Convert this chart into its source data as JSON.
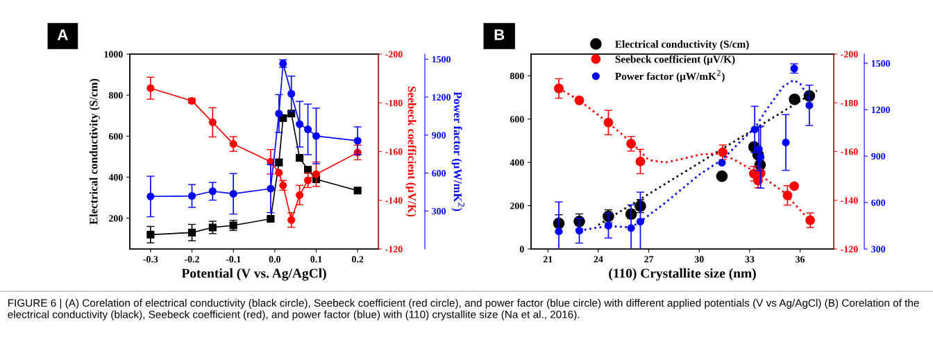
{
  "chart_data": [
    {
      "type": "line",
      "title": "A",
      "xlabel": "Potential (V vs. Ag/AgCl)",
      "ylabel": "Electrical conductivity (S/cm)",
      "y2label": "Seebeck coefficient (μV/K)",
      "y3label": "Power factor (μW/mK$^{2}$)",
      "x": [
        -0.3,
        -0.2,
        -0.15,
        -0.1,
        -0.01,
        0.01,
        0.02,
        0.04,
        0.06,
        0.08,
        0.1,
        0.2
      ],
      "xlim": [
        -0.35,
        0.25
      ],
      "xticks": [
        -0.3,
        -0.2,
        -0.1,
        {
          "value": 0,
          "label": "0.0"
        },
        0.1,
        0.2
      ],
      "ylim": [
        50,
        1000
      ],
      "yticks": [
        200,
        400,
        600,
        800,
        1000
      ],
      "y2lim": [
        -120,
        -200
      ],
      "y2ticks": [
        -200,
        -180,
        -160,
        -140,
        -120
      ],
      "y3lim": [
        0,
        1540
      ],
      "y3ticks": [
        300,
        600,
        900,
        1200,
        1500
      ],
      "grid": false,
      "legend": false,
      "series": [
        {
          "color": "#000000",
          "marker": "square",
          "values": [
            120,
            130,
            155,
            165,
            197,
            472,
            688,
            710,
            494,
            436,
            390,
            335
          ],
          "errors": [
            40,
            40,
            30,
            25,
            10,
            15,
            null,
            null,
            null,
            null,
            null,
            null
          ]
        },
        {
          "color": "#ff0000",
          "axis": "y2",
          "marker": "circle",
          "values": [
            -186,
            -180.8,
            -172,
            -163.1,
            -155.8,
            -151.3,
            -146.1,
            -131.9,
            -142.1,
            -148.2,
            -150.7,
            -159.6
          ],
          "errors": [
            4.5,
            1,
            6,
            3,
            5,
            null,
            2,
            3,
            4,
            3,
            5,
            3
          ]
        },
        {
          "color": "#0000ff",
          "axis": "y3",
          "marker": "circle",
          "values": [
            415,
            419,
            456,
            436,
            477,
            1070,
            1465,
            1226,
            986,
            945,
            893,
            855
          ],
          "errors": [
            160,
            90,
            70,
            160,
            190,
            150,
            30,
            140,
            180,
            200,
            220,
            110
          ]
        }
      ],
      "annotations": [
        "FIGURE 6 | (A) Corelation of electrical conductivity (black circle), Seebeck coefficient (red circle), and power factor (blue circle) with different applied potentials (V vs Ag/AgCl) (B) Corelation of the electrical conductivity (black), Seebeck coefficient (red), and power factor (blue) with (110) crystallite size (Na et al., 2016)."
      ]
    },
    {
      "type": "scatter",
      "title": "B",
      "xlabel": "(110) Crystallite size (nm)",
      "xlim": [
        20,
        38
      ],
      "xticks": [
        21,
        24,
        27,
        30,
        33,
        36
      ],
      "ylim": [
        0,
        900
      ],
      "yticks": [
        0,
        200,
        400,
        600,
        800
      ],
      "y2lim": [
        -120,
        -200
      ],
      "y2ticks": [
        -200,
        -180,
        -160,
        -140,
        -120
      ],
      "y3lim": [
        300,
        1559
      ],
      "y3ticks": [
        300,
        600,
        900,
        1200,
        1500
      ],
      "grid": false,
      "legend": "top",
      "series": [
        {
          "name": "Electrical conductivity (S/cm)",
          "color": "#000000",
          "marker": "circle",
          "x": [
            21.65,
            22.87,
            24.6,
            25.95,
            26.5,
            31.35,
            33.26,
            33.5,
            33.62,
            35.67,
            36.55
          ],
          "values": [
            118,
            127,
            151,
            161,
            198,
            336,
            471,
            435,
            389,
            691,
            707
          ],
          "errors": [
            40,
            35,
            30,
            20,
            30,
            null,
            null,
            null,
            null,
            null,
            null
          ]
        },
        {
          "name": "Seebeck coefficient (μV/K)",
          "color": "#ff0000",
          "axis": "y2",
          "marker": "circle",
          "x": [
            21.65,
            22.87,
            24.6,
            25.95,
            26.5,
            31.4,
            33.25,
            33.5,
            33.65,
            35.25,
            35.65,
            36.6
          ],
          "values": [
            -185.9,
            -181,
            -171.9,
            -163.2,
            -155.9,
            -159.7,
            -150.9,
            -148.1,
            -151.1,
            -142,
            -145.8,
            -131.8
          ],
          "errors": [
            4,
            1,
            5,
            3,
            5,
            3,
            3,
            3,
            null,
            4,
            null,
            3
          ]
        },
        {
          "name": "Power factor (μW/mK$^{2}$)",
          "color": "#0000ff",
          "axis": "y3",
          "marker": "circle",
          "x": [
            21.65,
            22.87,
            24.6,
            25.95,
            26.5,
            31.35,
            33.3,
            33.55,
            33.65,
            35.15,
            35.65,
            36.55
          ],
          "values": [
            414,
            418,
            451,
            435,
            477,
            857,
            1072,
            946,
            893,
            988,
            1466,
            1228
          ],
          "errors": [
            190,
            80,
            80,
            150,
            190,
            null,
            150,
            140,
            200,
            180,
            30,
            130
          ]
        },
        {
          "type": "line",
          "color": "#000000",
          "line_style": "dotted",
          "marker": "none",
          "x": [
            24,
            37
          ],
          "values": [
            111,
            731
          ]
        },
        {
          "type": "line",
          "color": "#ff0000",
          "axis": "y2",
          "line_style": "dotted",
          "marker": "none",
          "x": [
            21.65,
            22.87,
            24,
            25,
            26,
            27,
            28,
            29,
            30,
            31,
            32,
            33,
            34,
            35,
            36.6
          ],
          "values": [
            -186,
            -181,
            -175,
            -169.5,
            -163.5,
            -156.5,
            -155.5,
            -157,
            -158.7,
            -159.2,
            -157,
            -153,
            -148.5,
            -143.5,
            -131.5
          ]
        },
        {
          "type": "line",
          "color": "#0000ff",
          "axis": "y3",
          "line_style": "dotted",
          "marker": "none",
          "x": [
            22.87,
            24,
            25,
            25.95,
            26.5,
            28,
            30,
            31.4,
            32.5,
            33.3,
            34,
            35,
            35.6,
            36,
            36.6
          ],
          "values": [
            418,
            440,
            445,
            440,
            477,
            600,
            780,
            880,
            1000,
            1080,
            1200,
            1350,
            1390,
            1370,
            1260
          ]
        }
      ]
    }
  ]
}
